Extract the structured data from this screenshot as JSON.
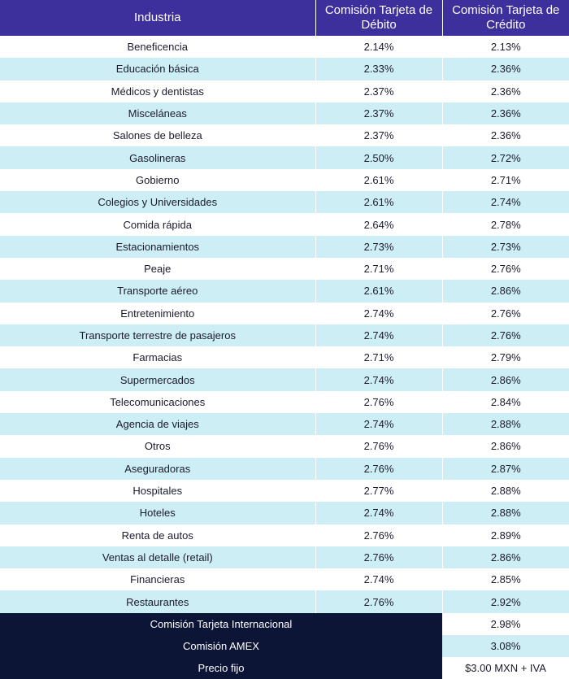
{
  "header": {
    "industry": "Industria",
    "debit": "Comisión Tarjeta de Débito",
    "credit": "Comisión Tarjeta de Crédito"
  },
  "rows": [
    {
      "industry": "Beneficencia",
      "debit": "2.14%",
      "credit": "2.13%"
    },
    {
      "industry": "Educación básica",
      "debit": "2.33%",
      "credit": "2.36%"
    },
    {
      "industry": "Médicos y dentistas",
      "debit": "2.37%",
      "credit": "2.36%"
    },
    {
      "industry": "Misceláneas",
      "debit": "2.37%",
      "credit": "2.36%"
    },
    {
      "industry": "Salones de belleza",
      "debit": "2.37%",
      "credit": "2.36%"
    },
    {
      "industry": "Gasolineras",
      "debit": "2.50%",
      "credit": "2.72%"
    },
    {
      "industry": "Gobierno",
      "debit": "2.61%",
      "credit": "2.71%"
    },
    {
      "industry": "Colegios y Universidades",
      "debit": "2.61%",
      "credit": "2.74%"
    },
    {
      "industry": "Comida rápida",
      "debit": "2.64%",
      "credit": "2.78%"
    },
    {
      "industry": "Estacionamientos",
      "debit": "2.73%",
      "credit": "2.73%"
    },
    {
      "industry": "Peaje",
      "debit": "2.71%",
      "credit": "2.76%"
    },
    {
      "industry": "Transporte aéreo",
      "debit": "2.61%",
      "credit": "2.86%"
    },
    {
      "industry": "Entretenimiento",
      "debit": "2.74%",
      "credit": "2.76%"
    },
    {
      "industry": "Transporte terrestre de pasajeros",
      "debit": "2.74%",
      "credit": "2.76%"
    },
    {
      "industry": "Farmacias",
      "debit": "2.71%",
      "credit": "2.79%"
    },
    {
      "industry": "Supermercados",
      "debit": "2.74%",
      "credit": "2.86%"
    },
    {
      "industry": "Telecomunicaciones",
      "debit": "2.76%",
      "credit": "2.84%"
    },
    {
      "industry": "Agencia de viajes",
      "debit": "2.74%",
      "credit": "2.88%"
    },
    {
      "industry": "Otros",
      "debit": "2.76%",
      "credit": "2.86%"
    },
    {
      "industry": "Aseguradoras",
      "debit": "2.76%",
      "credit": "2.87%"
    },
    {
      "industry": "Hospitales",
      "debit": "2.77%",
      "credit": "2.88%"
    },
    {
      "industry": "Hoteles",
      "debit": "2.74%",
      "credit": "2.88%"
    },
    {
      "industry": "Renta de autos",
      "debit": "2.76%",
      "credit": "2.89%"
    },
    {
      "industry": "Ventas al detalle (retail)",
      "debit": "2.76%",
      "credit": "2.86%"
    },
    {
      "industry": "Financieras",
      "debit": "2.74%",
      "credit": "2.85%"
    },
    {
      "industry": "Restaurantes",
      "debit": "2.76%",
      "credit": "2.92%"
    }
  ],
  "footer": [
    {
      "label": "Comisión Tarjeta Internacional",
      "value": "2.98%"
    },
    {
      "label": "Comisión AMEX",
      "value": "3.08%"
    },
    {
      "label": "Precio fijo",
      "value": "$3.00 MXN + IVA"
    }
  ],
  "colors": {
    "header_bg": "#3d2f9c",
    "stripe": "#cdeef4",
    "footer_bg": "#0d1537"
  }
}
